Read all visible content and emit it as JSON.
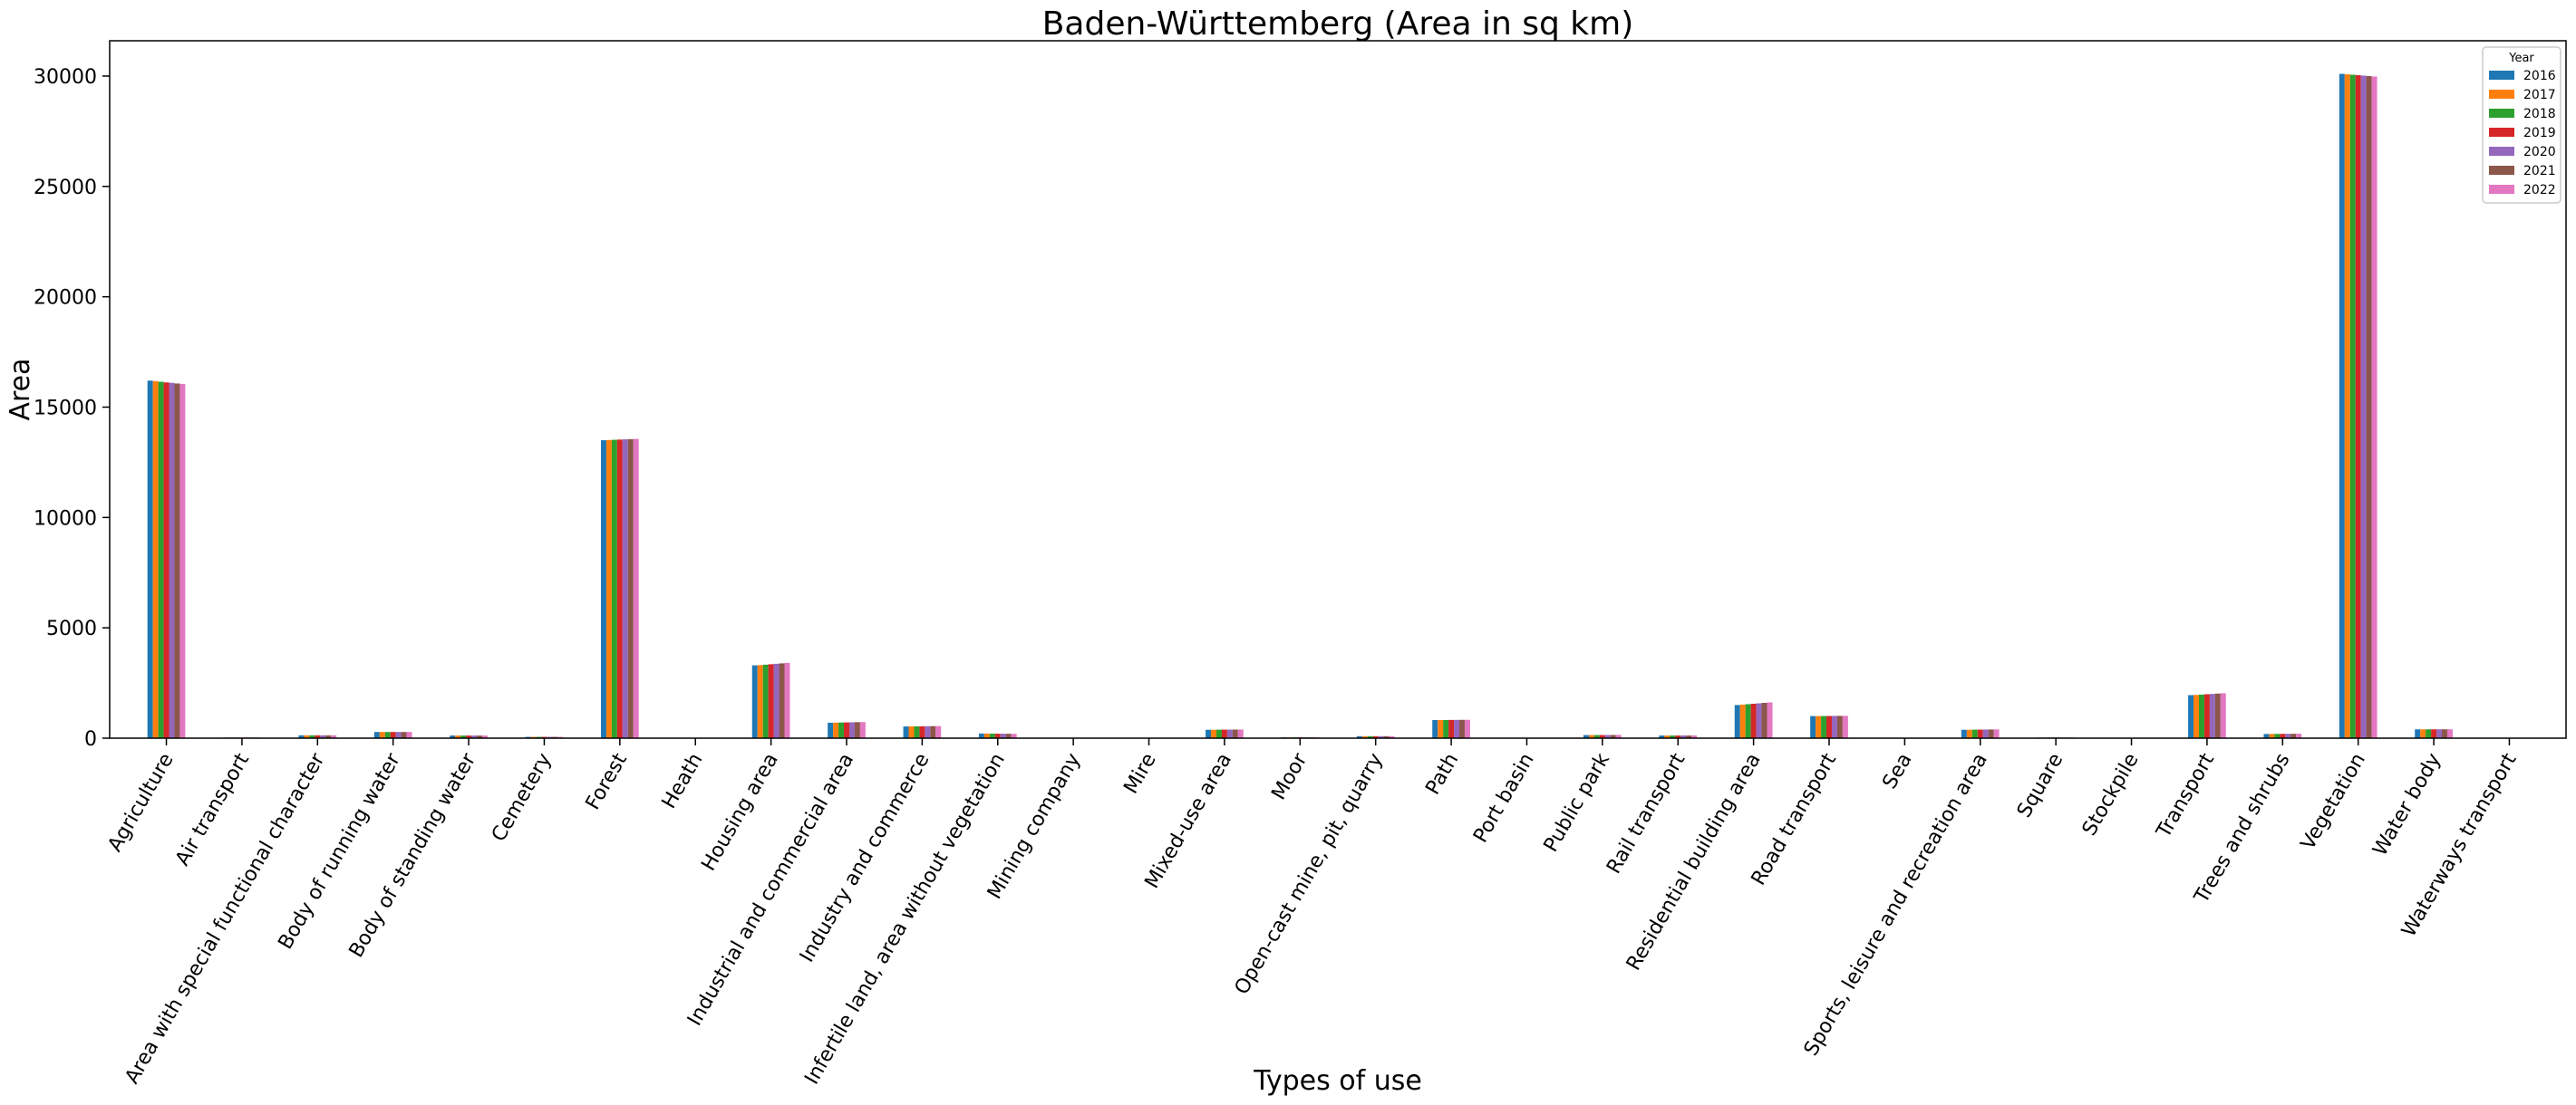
{
  "chart_data": {
    "type": "bar",
    "title": "Baden-Württemberg (Area in sq km)",
    "xlabel": "Types of use",
    "ylabel": "Area",
    "ylim": [
      0,
      31600
    ],
    "yticks": [
      0,
      5000,
      10000,
      15000,
      20000,
      25000,
      30000
    ],
    "grid": false,
    "legend": {
      "title": "Year",
      "placement": "top-right"
    },
    "categories": [
      "Agriculture",
      "Air transport",
      "Area with special functional character",
      "Body of running water",
      "Body of standing water",
      "Cemetery",
      "Forest",
      "Heath",
      "Housing area",
      "Industrial and commercial area",
      "Industry and commerce",
      "Infertile land, area without vegetation",
      "Mining company",
      "Mire",
      "Mixed-use area",
      "Moor",
      "Open-cast mine, pit, quarry",
      "Path",
      "Port basin",
      "Public park",
      "Rail transport",
      "Residential building area",
      "Road transport",
      "Sea",
      "Sports, leisure and recreation area",
      "Square",
      "Stockpile",
      "Transport",
      "Trees and shrubs",
      "Vegetation",
      "Water body",
      "Waterways transport"
    ],
    "series": [
      {
        "name": "2016",
        "color": "#1f77b4",
        "values": [
          16200,
          30,
          130,
          280,
          120,
          60,
          13500,
          0,
          3300,
          700,
          530,
          210,
          0,
          0,
          380,
          40,
          90,
          820,
          0,
          140,
          120,
          1500,
          1000,
          0,
          380,
          30,
          0,
          1950,
          190,
          30100,
          400,
          0
        ]
      },
      {
        "name": "2017",
        "color": "#ff7f0e",
        "values": [
          16180,
          30,
          130,
          280,
          120,
          60,
          13510,
          0,
          3310,
          705,
          533,
          208,
          0,
          0,
          382,
          40,
          90,
          822,
          0,
          141,
          120,
          1520,
          1002,
          0,
          382,
          30,
          0,
          1960,
          192,
          30080,
          400,
          0
        ]
      },
      {
        "name": "2018",
        "color": "#2ca02c",
        "values": [
          16150,
          30,
          130,
          280,
          120,
          60,
          13520,
          0,
          3330,
          710,
          536,
          206,
          0,
          0,
          384,
          40,
          90,
          824,
          0,
          142,
          121,
          1540,
          1004,
          0,
          385,
          30,
          0,
          1975,
          194,
          30060,
          401,
          0
        ]
      },
      {
        "name": "2019",
        "color": "#d62728",
        "values": [
          16120,
          30,
          130,
          280,
          120,
          60,
          13530,
          0,
          3350,
          715,
          539,
          204,
          0,
          0,
          386,
          40,
          90,
          826,
          0,
          143,
          121,
          1560,
          1006,
          0,
          388,
          30,
          0,
          1990,
          196,
          30040,
          401,
          0
        ]
      },
      {
        "name": "2020",
        "color": "#9467bd",
        "values": [
          16100,
          30,
          130,
          280,
          120,
          60,
          13540,
          0,
          3370,
          720,
          542,
          202,
          0,
          0,
          388,
          40,
          90,
          828,
          0,
          144,
          122,
          1580,
          1008,
          0,
          391,
          30,
          0,
          2005,
          198,
          30020,
          402,
          0
        ]
      },
      {
        "name": "2021",
        "color": "#8c564b",
        "values": [
          16070,
          30,
          130,
          280,
          120,
          60,
          13550,
          0,
          3390,
          725,
          545,
          200,
          0,
          0,
          390,
          40,
          90,
          830,
          0,
          145,
          122,
          1600,
          1010,
          0,
          394,
          30,
          0,
          2020,
          200,
          30000,
          402,
          0
        ]
      },
      {
        "name": "2022",
        "color": "#e377c2",
        "values": [
          16050,
          30,
          130,
          280,
          120,
          60,
          13560,
          0,
          3410,
          730,
          548,
          198,
          0,
          0,
          392,
          40,
          90,
          832,
          0,
          146,
          123,
          1620,
          1012,
          0,
          397,
          30,
          0,
          2035,
          202,
          29980,
          403,
          0
        ]
      }
    ]
  }
}
